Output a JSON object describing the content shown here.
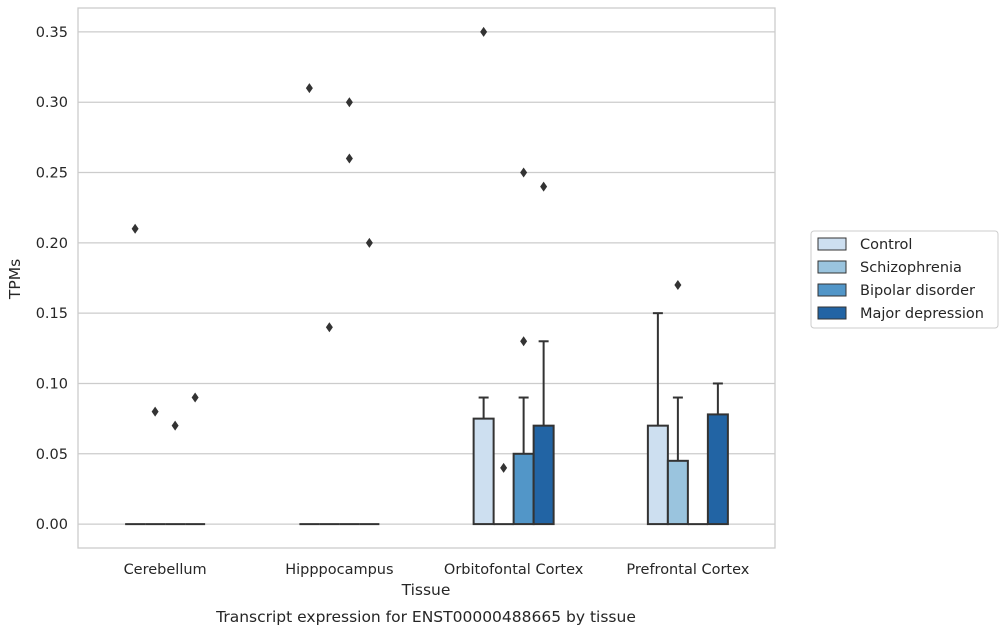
{
  "caption": "Transcript expression for ENST00000488665 by tissue",
  "chart_data": {
    "type": "bar",
    "title": "",
    "xlabel": "Tissue",
    "ylabel": "TPMs",
    "ylim": [
      -0.017,
      0.367
    ],
    "yticks": [
      0.0,
      0.05,
      0.1,
      0.15,
      0.2,
      0.25,
      0.3,
      0.35
    ],
    "ytick_labels": [
      "0.00",
      "0.05",
      "0.10",
      "0.15",
      "0.20",
      "0.25",
      "0.30",
      "0.35"
    ],
    "grid": "horizontal",
    "legend_position": "right",
    "categories": [
      "Cerebellum",
      "Hipppocampus",
      "Orbitofontal Cortex",
      "Prefrontal Cortex"
    ],
    "series": [
      {
        "name": "Control",
        "color": "#cddff0",
        "values": [
          0.0,
          0.0,
          0.075,
          0.07
        ],
        "whisker_high": [
          0.0,
          0.0,
          0.09,
          0.15
        ],
        "outliers": [
          [
            0.21
          ],
          [
            0.31
          ],
          [
            0.35
          ],
          []
        ]
      },
      {
        "name": "Schizophrenia",
        "color": "#9ac4de",
        "values": [
          0.0,
          0.0,
          0.0,
          0.045
        ],
        "whisker_high": [
          0.0,
          0.0,
          0.0,
          0.09
        ],
        "outliers": [
          [
            0.08
          ],
          [
            0.14
          ],
          [
            0.04
          ],
          [
            0.17
          ]
        ]
      },
      {
        "name": "Bipolar disorder",
        "color": "#5296c8",
        "values": [
          0.0,
          0.0,
          0.05,
          0.0
        ],
        "whisker_high": [
          0.0,
          0.0,
          0.09,
          0.0
        ],
        "outliers": [
          [
            0.07
          ],
          [
            0.3,
            0.26
          ],
          [
            0.25,
            0.13
          ],
          []
        ]
      },
      {
        "name": "Major depression",
        "color": "#2264a4",
        "values": [
          0.0,
          0.0,
          0.07,
          0.078
        ],
        "whisker_high": [
          0.0,
          0.0,
          0.13,
          0.1
        ],
        "outliers": [
          [
            0.09
          ],
          [
            0.2
          ],
          [
            0.24
          ],
          []
        ]
      }
    ]
  }
}
